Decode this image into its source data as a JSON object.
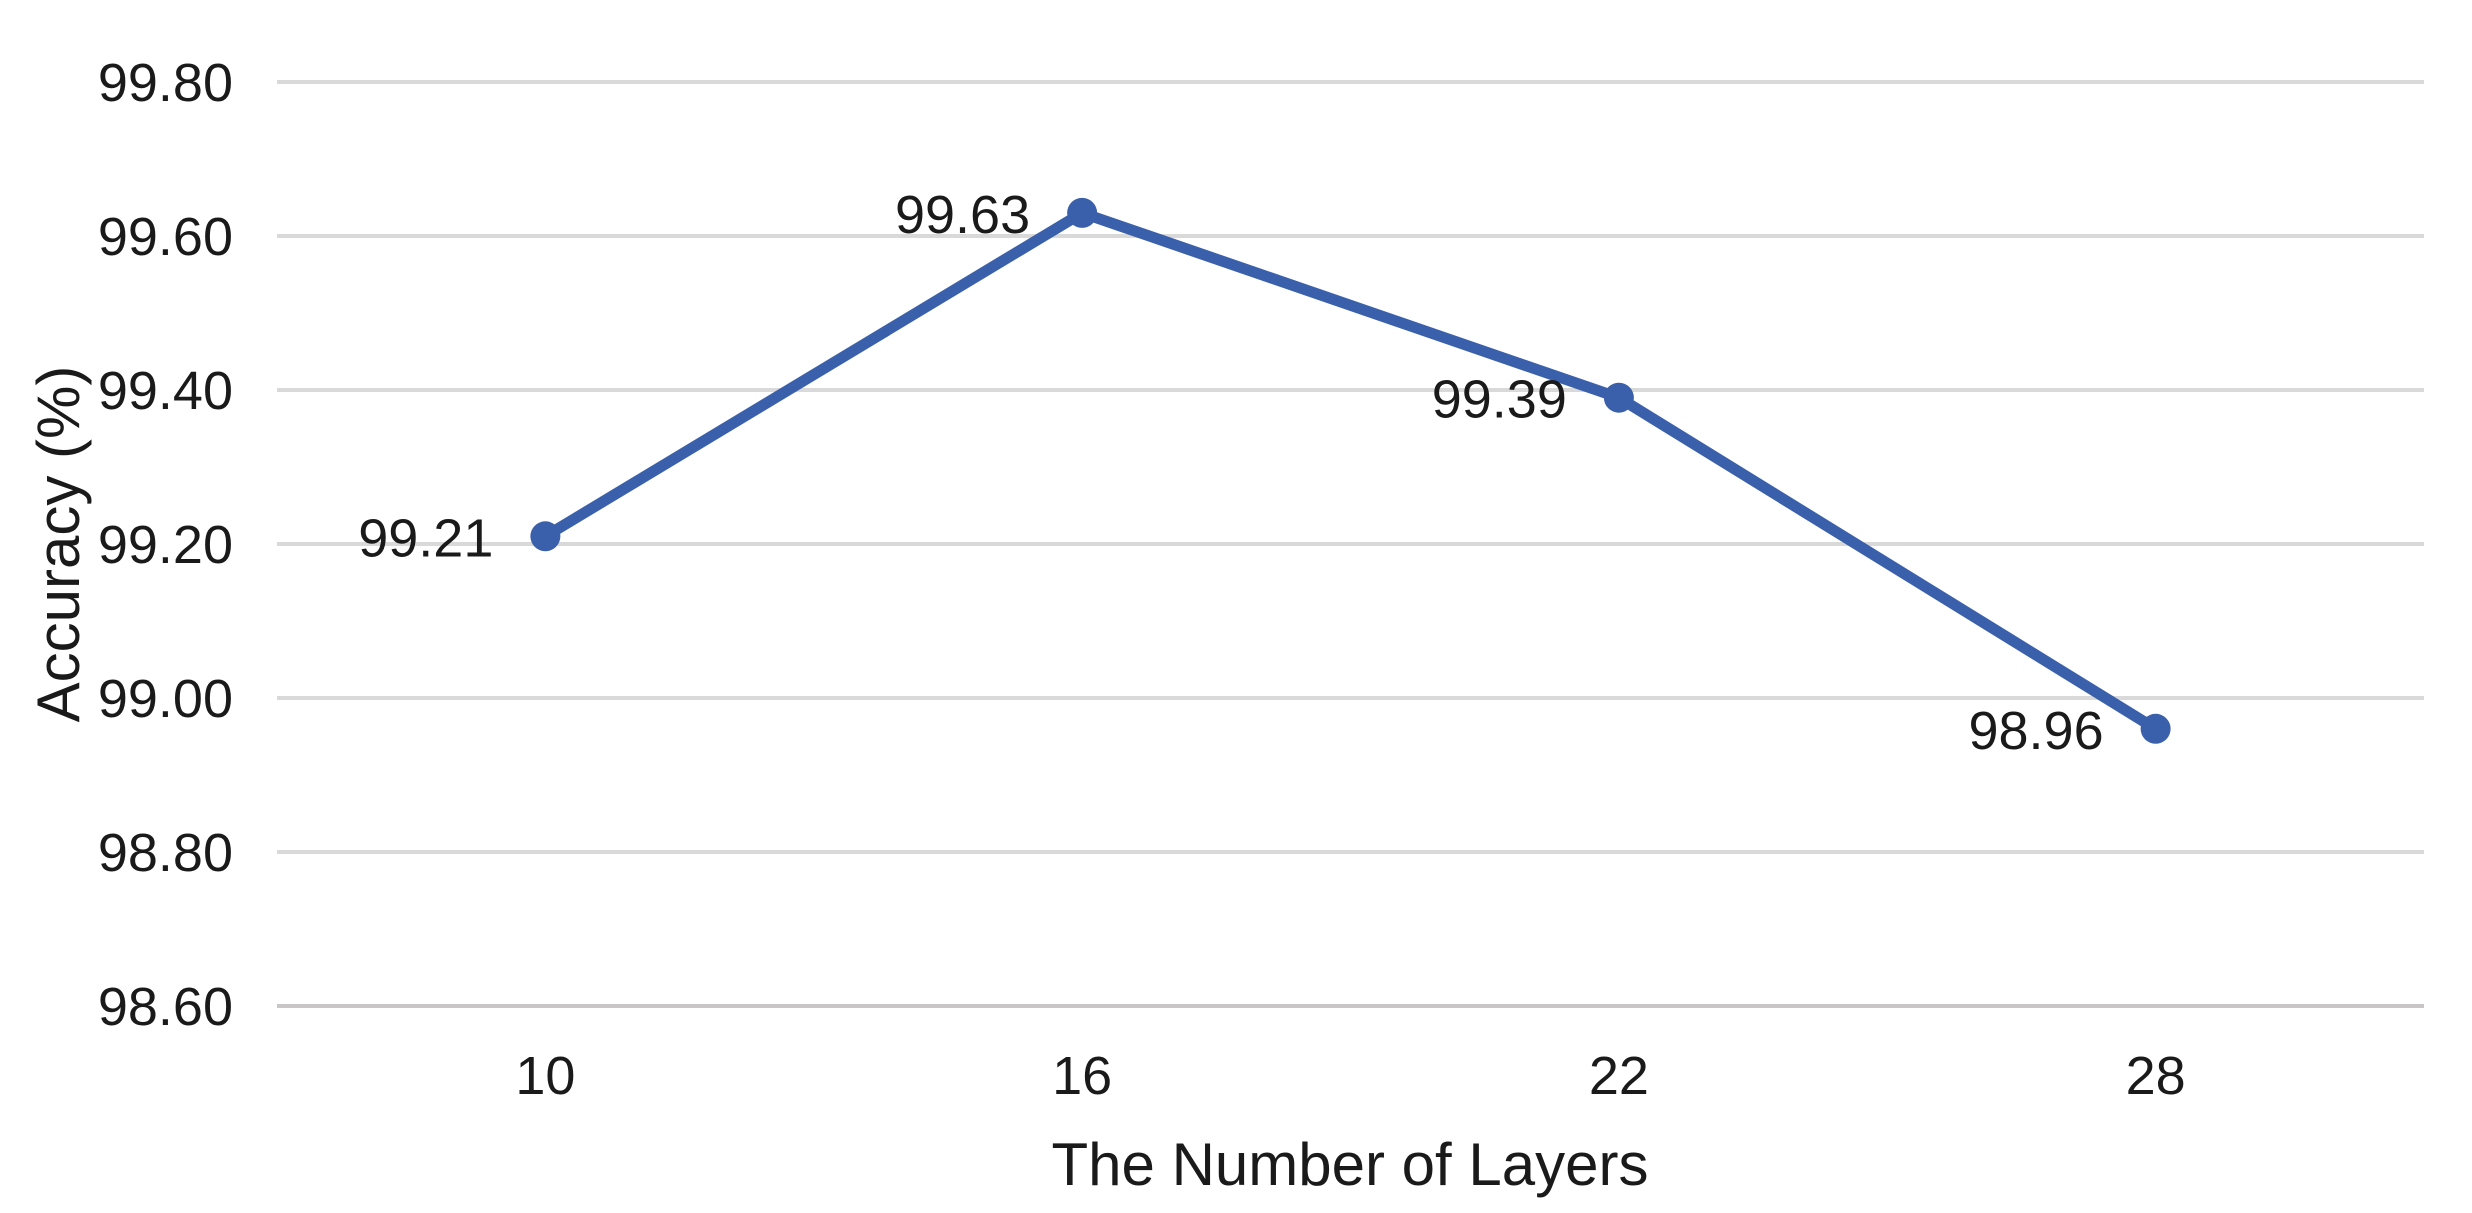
{
  "chart_data": {
    "type": "line",
    "title": "",
    "xlabel": "The Number of Layers",
    "ylabel": "Accuracy (%)",
    "categories": [
      "10",
      "16",
      "22",
      "28"
    ],
    "series": [
      {
        "name": "Accuracy",
        "values": [
          99.21,
          99.63,
          99.39,
          98.96
        ],
        "point_labels": [
          "99.21",
          "99.63",
          "99.39",
          "98.96"
        ]
      }
    ],
    "y_ticks": [
      {
        "value": 99.8,
        "label": "99.80"
      },
      {
        "value": 99.6,
        "label": "99.60"
      },
      {
        "value": 99.4,
        "label": "99.40"
      },
      {
        "value": 99.2,
        "label": "99.20"
      },
      {
        "value": 99.0,
        "label": "99.00"
      },
      {
        "value": 98.8,
        "label": "98.80"
      },
      {
        "value": 98.6,
        "label": "98.60"
      }
    ],
    "ylim": [
      98.6,
      99.8
    ],
    "grid": true,
    "legend": false,
    "colors": {
      "line": "#3A60AB",
      "marker": "#3A60AB",
      "gridline": "#D9D9D9",
      "axis_line": "#C8C6C6",
      "text": "#1A1A1A",
      "background": "#FFFFFF"
    }
  }
}
